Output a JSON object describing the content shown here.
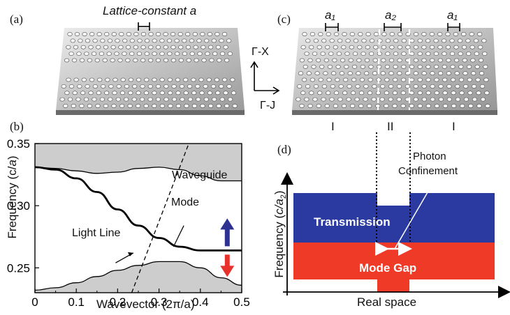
{
  "panels": {
    "a": {
      "label": "(a)",
      "lattice_text": "Lattice-constant a"
    },
    "b": {
      "label": "(b)"
    },
    "c": {
      "label": "(c)",
      "a1_left": "a₁",
      "a2": "a₂",
      "a1_right": "a₁",
      "region_left": "I",
      "region_mid": "II",
      "region_right": "I"
    },
    "d": {
      "label": "(d)"
    }
  },
  "directions": {
    "vertical": "Γ-X",
    "horizontal": "Γ-J"
  },
  "band_diagram": {
    "ylabel_prefix": "Frequency (c/",
    "ylabel_var": "a",
    "ylabel_suffix": ")",
    "xlabel": "Wavevector (2π/a)",
    "yticks": [
      "0.35",
      "0.30",
      "0.25"
    ],
    "xticks": [
      "0",
      "0.1",
      "0.2",
      "0.3",
      "0.4",
      "0.5"
    ],
    "annotations": {
      "waveguide": "Waveguide",
      "mode": "Mode",
      "light_line": "Light Line"
    }
  },
  "chart_data": {
    "type": "line",
    "xlabel": "Wavevector (2π/a)",
    "ylabel": "Frequency (c/a)",
    "xlim": [
      0,
      0.5
    ],
    "ylim": [
      0.23,
      0.35
    ],
    "series": [
      {
        "x": [
          0,
          0.05,
          0.1,
          0.15,
          0.2,
          0.25,
          0.3,
          0.35,
          0.4,
          0.45,
          0.5
        ],
        "y": [
          0.331,
          0.329,
          0.322,
          0.311,
          0.297,
          0.284,
          0.274,
          0.267,
          0.264,
          0.264,
          0.264
        ]
      },
      {
        "x": [
          0,
          0.05,
          0.1,
          0.15,
          0.2,
          0.25,
          0.3,
          0.35,
          0.4,
          0.45,
          0.5
        ],
        "y": [
          0.331,
          0.33,
          0.328,
          0.326,
          0.327,
          0.33,
          0.331,
          0.329,
          0.324,
          0.32,
          0.32
        ]
      },
      {
        "x": [
          0,
          0.05,
          0.1,
          0.15,
          0.2,
          0.25,
          0.3,
          0.35,
          0.4,
          0.45,
          0.5
        ],
        "y": [
          0.232,
          0.234,
          0.238,
          0.243,
          0.248,
          0.252,
          0.255,
          0.255,
          0.25,
          0.242,
          0.236
        ]
      },
      {
        "x": [
          0.234,
          0.372
        ],
        "y": [
          0.23,
          0.35
        ]
      }
    ]
  },
  "confinement": {
    "ylabel_prefix": "Frequency ",
    "ylabel_paren_open": "(",
    "ylabel_var": "c/a",
    "ylabel_sub": "2",
    "ylabel_paren_close": ")",
    "xlabel": "Real space",
    "photon": "Photon",
    "confinement": "Confinement",
    "transmission": "Transmission",
    "mode_gap": "Mode Gap",
    "colors": {
      "transmission": "#2b3aa0",
      "mode_gap": "#ee3a26"
    }
  },
  "colors": {
    "gap_fill": "#cdcdcd",
    "up_arrow": "#2e3192",
    "down_arrow": "#e8312a"
  }
}
